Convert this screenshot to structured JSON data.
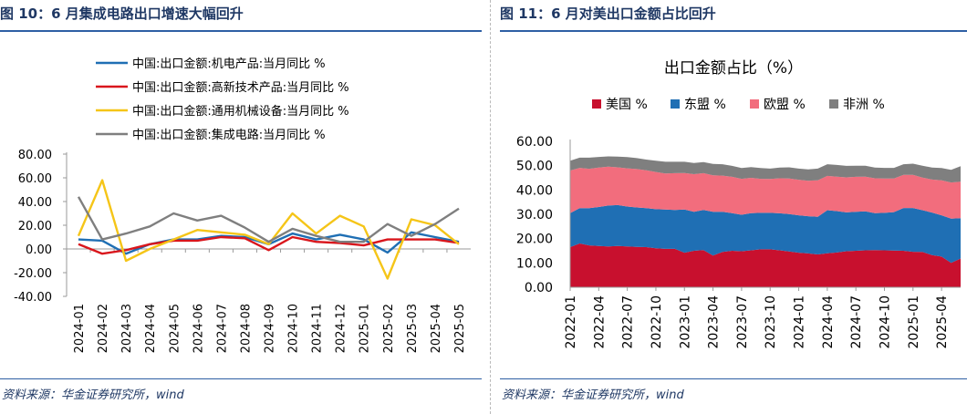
{
  "left": {
    "title": "图 10：6 月集成电路出口增速大幅回升",
    "source": "资料来源：华金证券研究所，wind"
  },
  "right": {
    "title": "图 11：6 月对美出口金额占比回升",
    "source": "资料来源：华金证券研究所，wind"
  },
  "chart_data": [
    {
      "type": "line",
      "title": "",
      "xlabel": "",
      "ylabel": "",
      "ylim": [
        -40,
        80
      ],
      "yticks": [
        "80.00",
        "60.00",
        "40.00",
        "20.00",
        "0.00",
        "-20.00",
        "-40.00"
      ],
      "ytick_values": [
        80,
        60,
        40,
        20,
        0,
        -20,
        -40
      ],
      "legend_position": "top",
      "categories": [
        "2024-01",
        "2024-02",
        "2024-03",
        "2024-04",
        "2024-05",
        "2024-06",
        "2024-07",
        "2024-08",
        "2024-09",
        "2024-10",
        "2024-11",
        "2024-12",
        "2025-01",
        "2025-02",
        "2025-03",
        "2025-04",
        "2025-05"
      ],
      "series": [
        {
          "name": "中国:出口金额:机电产品:当月同比 %",
          "color": "#1f6fb4",
          "values": [
            8,
            7,
            -4,
            4,
            8,
            8,
            11,
            10,
            4,
            13,
            8,
            12,
            8,
            -3,
            14,
            10,
            6
          ]
        },
        {
          "name": "中国:出口金额:高新技术产品:当月同比 %",
          "color": "#d9161c",
          "values": [
            4,
            -4,
            -1,
            4,
            7,
            7,
            10,
            9,
            -1,
            10,
            6,
            5,
            3,
            8,
            8,
            8,
            5
          ]
        },
        {
          "name": "中国:出口金额:通用机械设备:当月同比 %",
          "color": "#f5c518",
          "values": [
            11,
            58,
            -10,
            0,
            8,
            16,
            14,
            12,
            4,
            30,
            13,
            28,
            19,
            -25,
            25,
            20,
            4
          ]
        },
        {
          "name": "中国:出口金额:集成电路:当月同比 %",
          "color": "#7f7f7f",
          "values": [
            44,
            8,
            13,
            19,
            30,
            24,
            28,
            18,
            6,
            17,
            11,
            6,
            6,
            21,
            11,
            21,
            34
          ]
        }
      ]
    },
    {
      "type": "area",
      "stacked": true,
      "title": "出口金额占比（%）",
      "xlabel": "",
      "ylabel": "",
      "ylim": [
        0,
        60
      ],
      "yticks": [
        "60.00",
        "50.00",
        "40.00",
        "30.00",
        "20.00",
        "10.00",
        "0.00"
      ],
      "ytick_values": [
        60,
        50,
        40,
        30,
        20,
        10,
        0
      ],
      "legend_position": "top",
      "tick_labels": [
        "2022-01",
        "2022-04",
        "2022-07",
        "2022-10",
        "2023-01",
        "2023-04",
        "2023-07",
        "2023-10",
        "2024-01",
        "2024-04",
        "2024-07",
        "2024-10",
        "2025-01",
        "2025-04"
      ],
      "tick_indices": [
        0,
        3,
        6,
        9,
        12,
        15,
        18,
        21,
        24,
        27,
        30,
        33,
        36,
        39
      ],
      "n_points": 42,
      "series": [
        {
          "name": "美国 %",
          "color": "#c8102e",
          "values": [
            16.5,
            18,
            17.2,
            17,
            16.8,
            17,
            16.8,
            16.6,
            16.5,
            16,
            15.8,
            15.8,
            14.2,
            15,
            15.3,
            13,
            14.5,
            15,
            14.8,
            15.2,
            15.6,
            15.6,
            15.2,
            14.7,
            14.2,
            13.9,
            13.5,
            14,
            14.3,
            14.8,
            15,
            15.2,
            15.3,
            15.2,
            15.1,
            15,
            14.6,
            14.5,
            13.2,
            12.6,
            10,
            11.8
          ]
        },
        {
          "name": "东盟 %",
          "color": "#1f6fb4",
          "values": [
            14,
            14.5,
            15.3,
            16,
            16.8,
            16.8,
            16.4,
            16.2,
            16,
            16.1,
            16.2,
            16,
            17.8,
            16,
            16.5,
            18,
            16.5,
            15.5,
            15,
            15.3,
            15,
            15,
            15.2,
            15.4,
            15.4,
            15.3,
            15.5,
            17.7,
            17,
            16,
            16,
            16,
            15.2,
            15.4,
            15.8,
            17.6,
            18,
            17.2,
            17.5,
            17,
            18.2,
            16.6
          ]
        },
        {
          "name": "欧盟 %",
          "color": "#f26d7d",
          "values": [
            17.5,
            16.6,
            16.2,
            16.2,
            16,
            15.5,
            15.7,
            15.8,
            15.6,
            15.3,
            14.8,
            15.1,
            15,
            15.5,
            15.1,
            15,
            14.9,
            14.9,
            14.8,
            14.5,
            14,
            13.9,
            14.4,
            14.6,
            14.6,
            14.6,
            15,
            14.1,
            14.2,
            14.4,
            14.4,
            14.3,
            14.3,
            14.1,
            13.8,
            13.6,
            13.6,
            13.4,
            13.6,
            14.4,
            14.9,
            15
          ]
        },
        {
          "name": "非洲 %",
          "color": "#7f7f7f",
          "values": [
            4,
            4.2,
            4.6,
            4.4,
            4.2,
            4.4,
            4.6,
            4.5,
            4.4,
            4.6,
            4.8,
            4.7,
            4.6,
            4.6,
            4.6,
            4.7,
            4.7,
            4.5,
            4.4,
            4.4,
            4.4,
            4.3,
            4.4,
            4.6,
            4.6,
            4.7,
            4.8,
            4.8,
            4.8,
            4.7,
            4.6,
            4.5,
            4.4,
            4.4,
            4.4,
            4.4,
            4.6,
            4.9,
            4.9,
            5,
            5.2,
            6.4
          ]
        }
      ]
    }
  ]
}
